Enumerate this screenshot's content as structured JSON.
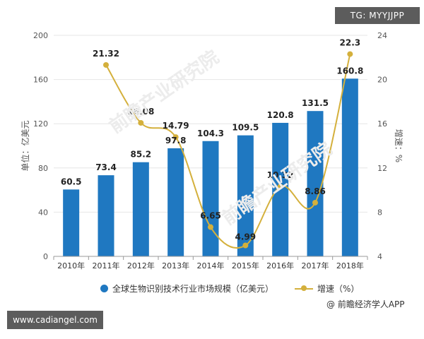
{
  "badges": {
    "top_right": "TG: MYYJJPP",
    "bottom_left": "www.cadiangel.com"
  },
  "credit": "@ 前瞻经济学人APP",
  "watermarks": [
    "前瞻产业研究院",
    "前瞻产业研究院"
  ],
  "legend": {
    "bar_label": "全球生物识别技术行业市场规模（亿美元）",
    "line_label": "增速（%）"
  },
  "colors": {
    "bar": "#1f78c1",
    "line": "#d4b03c",
    "grid": "#e6e6e6",
    "text": "#333333"
  },
  "chart_data": {
    "type": "bar",
    "categories": [
      "2010年",
      "2011年",
      "2012年",
      "2013年",
      "2014年",
      "2015年",
      "2016年",
      "2017年",
      "2018年"
    ],
    "series": [
      {
        "name": "全球生物识别技术行业市场规模（亿美元）",
        "type": "bar",
        "axis": "left",
        "values": [
          60.5,
          73.4,
          85.2,
          97.8,
          104.3,
          109.5,
          120.8,
          131.5,
          160.8
        ],
        "labels": [
          "60.5",
          "73.4",
          "85.2",
          "97.8",
          "104.3",
          "109.5",
          "120.8",
          "131.5",
          "160.8"
        ]
      },
      {
        "name": "增速（%）",
        "type": "line",
        "axis": "right",
        "values": [
          null,
          21.32,
          16.08,
          14.79,
          6.65,
          4.99,
          10.32,
          8.86,
          22.3
        ],
        "labels": [
          "",
          "21.32",
          "16.08",
          "14.79",
          "6.65",
          "4.99",
          "10.32",
          "8.86",
          "22.3"
        ]
      }
    ],
    "ylabel": "单位：亿美元",
    "y2label": "增速：%",
    "ylim": [
      0,
      200
    ],
    "y2lim": [
      4,
      24
    ],
    "yticks": [
      0,
      40,
      80,
      120,
      160,
      200
    ],
    "y2ticks": [
      4,
      8,
      12,
      16,
      20,
      24
    ],
    "grid": true,
    "legend_position": "bottom"
  }
}
